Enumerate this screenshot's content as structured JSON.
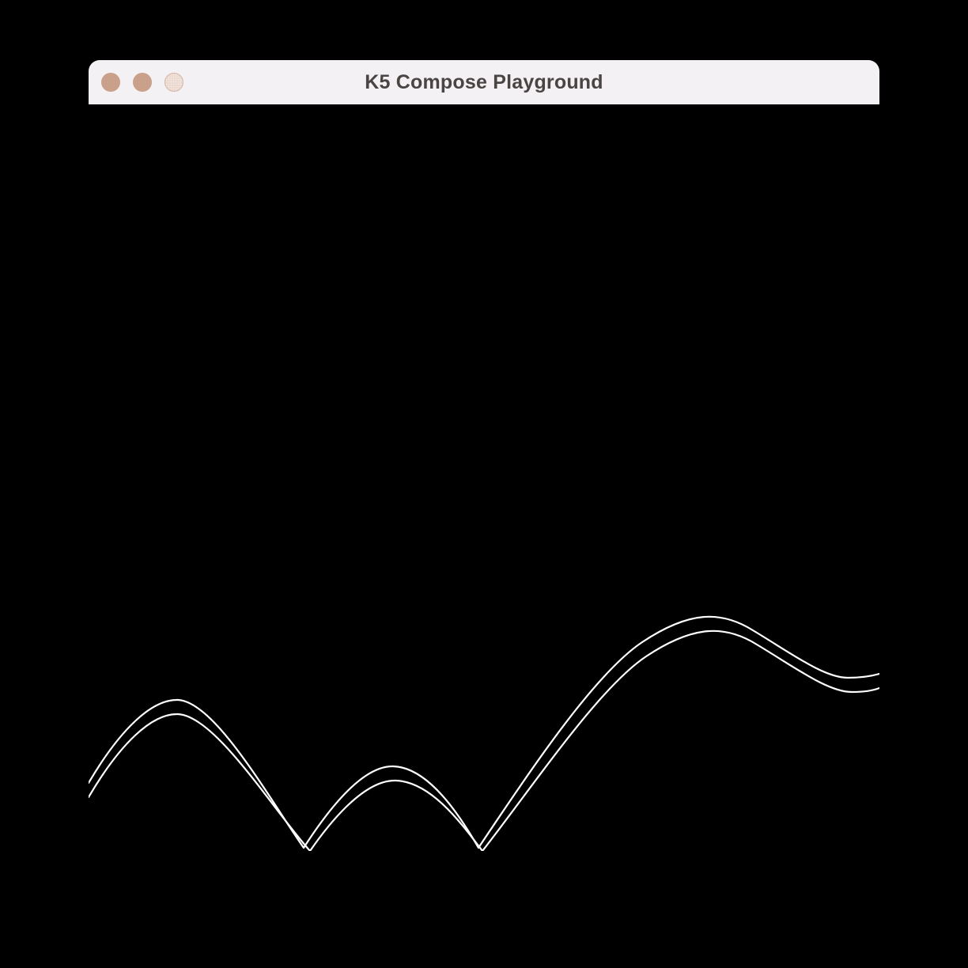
{
  "window": {
    "title": "K5 Compose Playground",
    "traffic_lights": [
      {
        "name": "close-button",
        "icon": "close-dot-icon",
        "color": "#c9a089"
      },
      {
        "name": "minimize-button",
        "icon": "minimize-dot-icon",
        "color": "#c9a089"
      },
      {
        "name": "zoom-button",
        "icon": "zoom-dot-icon",
        "color": "#e8d3c8"
      }
    ]
  },
  "canvas": {
    "background": "#000000",
    "stroke_color": "#ffffff"
  }
}
